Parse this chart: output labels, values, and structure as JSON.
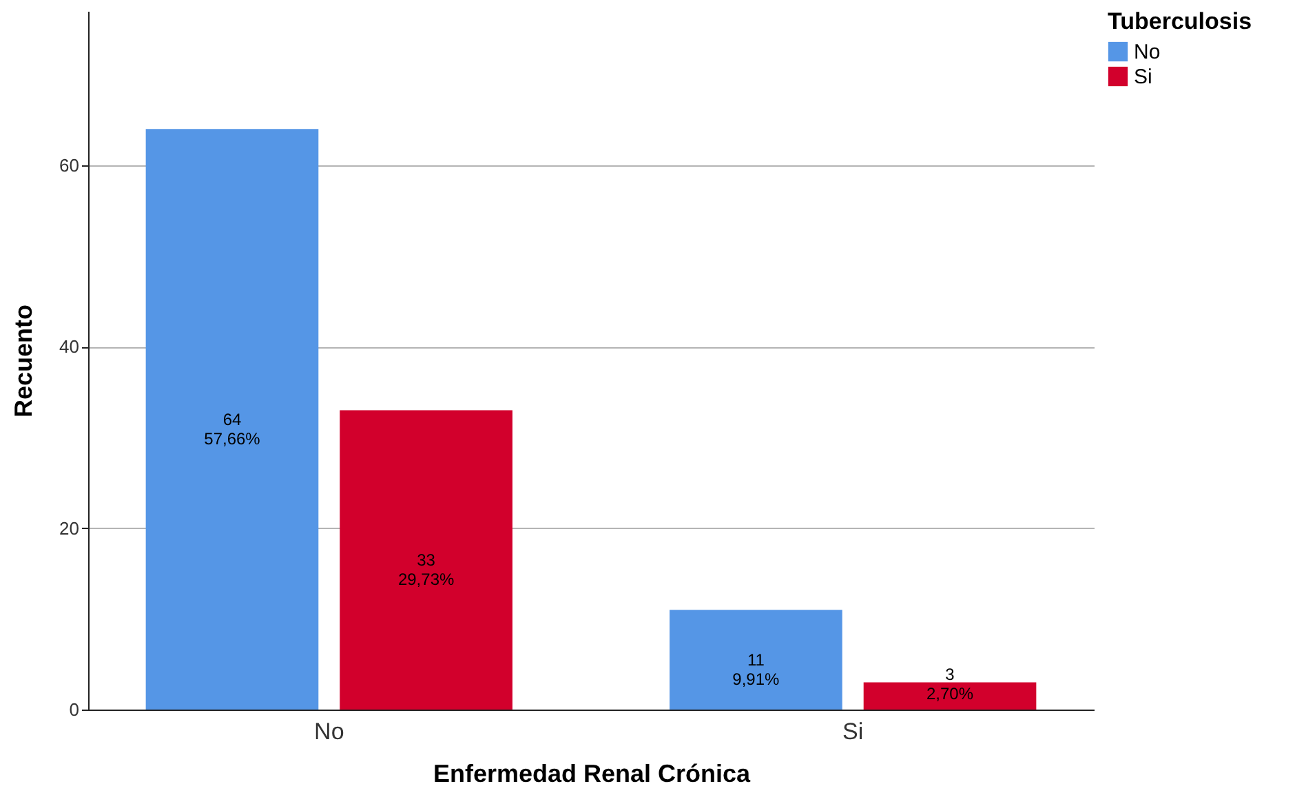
{
  "chart_data": {
    "type": "bar",
    "xlabel": "Enfermedad Renal Crónica",
    "ylabel": "Recuento",
    "legend_title": "Tuberculosis",
    "categories": [
      "No",
      "Si"
    ],
    "series": [
      {
        "name": "No",
        "color": "#5596e6",
        "values": [
          64,
          11
        ],
        "value_labels": [
          "64\n57,66%",
          "11\n9,91%"
        ]
      },
      {
        "name": "Si",
        "color": "#d2002c",
        "values": [
          33,
          3
        ],
        "value_labels": [
          "33\n29,73%",
          "3\n2,70%"
        ]
      }
    ],
    "ylim": [
      0,
      77
    ],
    "yticks": [
      0,
      20,
      40,
      60
    ],
    "grid": "y",
    "legend": "top right"
  }
}
